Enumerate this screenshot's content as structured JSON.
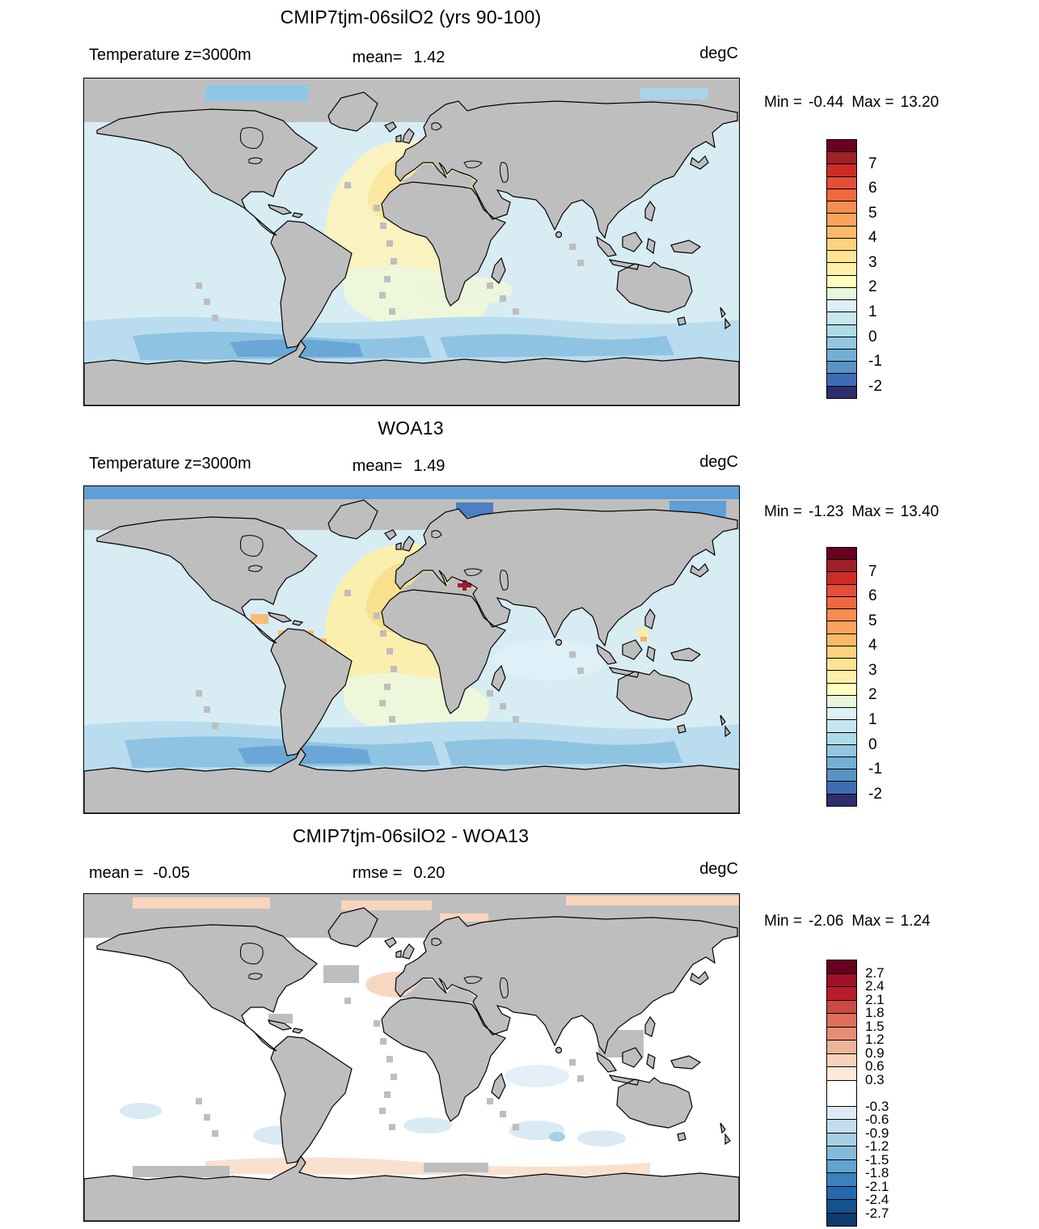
{
  "figure": {
    "variable": "Temperature",
    "depth_label": "z=3000m",
    "units": "degC",
    "land_mask_color": "#bebebe"
  },
  "panels": [
    {
      "title": "CMIP7tjm-06silO2 (yrs 90-100)",
      "left_label": "Temperature z=3000m",
      "left_value": "",
      "center_label": "mean=",
      "center_value": "1.42",
      "units": "degC",
      "min_label": "Min =",
      "min_value": "-0.44",
      "max_label": "Max =",
      "max_value": "13.20",
      "colorbar": {
        "top_value": 8.0,
        "bottom_value": -2.5,
        "colors": [
          "#690122",
          "#a02028",
          "#cf2b27",
          "#e44f39",
          "#f0683f",
          "#f68d51",
          "#fba35c",
          "#fdb96a",
          "#fdd27f",
          "#fee395",
          "#fef0a8",
          "#ffffbf",
          "#e9f6dd",
          "#ddf0f7",
          "#c7e7f0",
          "#aedbe8",
          "#93c6e0",
          "#74afd3",
          "#5b92c6",
          "#3f6db5",
          "#2d2e6e"
        ],
        "spans": [
          0.5,
          0.5,
          0.5,
          0.5,
          0.5,
          0.5,
          0.5,
          0.5,
          0.5,
          0.5,
          0.5,
          0.5,
          0.5,
          0.5,
          0.5,
          0.5,
          0.5,
          0.5,
          0.5,
          0.5,
          0.5
        ],
        "ticks": [
          {
            "value": 7,
            "label": "7"
          },
          {
            "value": 6,
            "label": "6"
          },
          {
            "value": 5,
            "label": "5"
          },
          {
            "value": 4,
            "label": "4"
          },
          {
            "value": 3,
            "label": "3"
          },
          {
            "value": 2,
            "label": "2"
          },
          {
            "value": 1,
            "label": "1"
          },
          {
            "value": 0,
            "label": "0"
          },
          {
            "value": -1,
            "label": "-1"
          },
          {
            "value": -2,
            "label": "-2"
          }
        ]
      }
    },
    {
      "title": "WOA13",
      "left_label": "Temperature z=3000m",
      "left_value": "",
      "center_label": "mean=",
      "center_value": "1.49",
      "units": "degC",
      "min_label": "Min =",
      "min_value": "-1.23",
      "max_label": "Max =",
      "max_value": "13.40",
      "colorbar": {
        "top_value": 8.0,
        "bottom_value": -2.5,
        "colors": [
          "#690122",
          "#a02028",
          "#cf2b27",
          "#e44f39",
          "#f0683f",
          "#f68d51",
          "#fba35c",
          "#fdb96a",
          "#fdd27f",
          "#fee395",
          "#fef0a8",
          "#ffffbf",
          "#e9f6dd",
          "#ddf0f7",
          "#c7e7f0",
          "#aedbe8",
          "#93c6e0",
          "#74afd3",
          "#5b92c6",
          "#3f6db5",
          "#2d2e6e"
        ],
        "spans": [
          0.5,
          0.5,
          0.5,
          0.5,
          0.5,
          0.5,
          0.5,
          0.5,
          0.5,
          0.5,
          0.5,
          0.5,
          0.5,
          0.5,
          0.5,
          0.5,
          0.5,
          0.5,
          0.5,
          0.5,
          0.5
        ],
        "ticks": [
          {
            "value": 7,
            "label": "7"
          },
          {
            "value": 6,
            "label": "6"
          },
          {
            "value": 5,
            "label": "5"
          },
          {
            "value": 4,
            "label": "4"
          },
          {
            "value": 3,
            "label": "3"
          },
          {
            "value": 2,
            "label": "2"
          },
          {
            "value": 1,
            "label": "1"
          },
          {
            "value": 0,
            "label": "0"
          },
          {
            "value": -1,
            "label": "-1"
          },
          {
            "value": -2,
            "label": "-2"
          }
        ]
      }
    },
    {
      "title": "CMIP7tjm-06silO2 - WOA13",
      "left_label": "mean =",
      "left_value": "-0.05",
      "center_label": "rmse =",
      "center_value": "0.20",
      "units": "degC",
      "min_label": "Min =",
      "min_value": "-2.06",
      "max_label": "Max =",
      "max_value": "1.24",
      "colorbar": {
        "top_value": 3.0,
        "bottom_value": -3.0,
        "colors": [
          "#67001f",
          "#9c1127",
          "#bc1b2c",
          "#cc4a42",
          "#dc7059",
          "#e78e71",
          "#eeb49a",
          "#f8d3bb",
          "#fce9dc",
          "#ffffff",
          "#ddeaf3",
          "#c4ddeb",
          "#a7cfe3",
          "#86badb",
          "#62a3cf",
          "#3a82bc",
          "#2468ae",
          "#15508f",
          "#0c3b70"
        ],
        "spans": [
          0.3,
          0.3,
          0.3,
          0.3,
          0.3,
          0.3,
          0.3,
          0.3,
          0.3,
          0.6,
          0.3,
          0.3,
          0.3,
          0.3,
          0.3,
          0.3,
          0.3,
          0.3,
          0.3
        ],
        "ticks": [
          {
            "value": 2.7,
            "label": "2.7"
          },
          {
            "value": 2.4,
            "label": "2.4"
          },
          {
            "value": 2.1,
            "label": "2.1"
          },
          {
            "value": 1.8,
            "label": "1.8"
          },
          {
            "value": 1.5,
            "label": "1.5"
          },
          {
            "value": 1.2,
            "label": "1.2"
          },
          {
            "value": 0.9,
            "label": "0.9"
          },
          {
            "value": 0.6,
            "label": "0.6"
          },
          {
            "value": 0.3,
            "label": "0.3"
          },
          {
            "value": -0.3,
            "label": "-0.3"
          },
          {
            "value": -0.6,
            "label": "-0.6"
          },
          {
            "value": -0.9,
            "label": "-0.9"
          },
          {
            "value": -1.2,
            "label": "-1.2"
          },
          {
            "value": -1.5,
            "label": "-1.5"
          },
          {
            "value": -1.8,
            "label": "-1.8"
          },
          {
            "value": -2.1,
            "label": "-2.1"
          },
          {
            "value": -2.4,
            "label": "-2.4"
          },
          {
            "value": -2.7,
            "label": "-2.7"
          }
        ]
      }
    }
  ],
  "chart_data": [
    {
      "type": "heatmap",
      "title": "CMIP7tjm-06silO2 (yrs 90-100)",
      "variable": "Temperature",
      "depth": "z=3000m",
      "units": "degC",
      "projection": "global latitude-longitude map",
      "mean": 1.42,
      "min": -0.44,
      "max": 13.2,
      "colorbar_range": [
        -2.5,
        8.0
      ],
      "colorbar_step": 0.5,
      "colorbar_ticks": [
        7,
        6,
        5,
        4,
        3,
        2,
        1,
        0,
        -1,
        -2
      ],
      "palette": [
        "#690122",
        "#a02028",
        "#cf2b27",
        "#e44f39",
        "#f0683f",
        "#f68d51",
        "#fba35c",
        "#fdb96a",
        "#fdd27f",
        "#fee395",
        "#fef0a8",
        "#ffffbf",
        "#e9f6dd",
        "#ddf0f7",
        "#c7e7f0",
        "#aedbe8",
        "#93c6e0",
        "#74afd3",
        "#5b92c6",
        "#3f6db5",
        "#2d2e6e"
      ],
      "features": "pale-yellow warm pool (2-3 degC) in North Atlantic, light blue (~1 degC) Pacific and Indian oceans, darker blue band (0-1 degC) around Antarctica, gray land/no-data mask incl. Arctic"
    },
    {
      "type": "heatmap",
      "title": "WOA13",
      "variable": "Temperature",
      "depth": "z=3000m",
      "units": "degC",
      "projection": "global latitude-longitude map",
      "mean": 1.49,
      "min": -1.23,
      "max": 13.4,
      "colorbar_range": [
        -2.5,
        8.0
      ],
      "colorbar_step": 0.5,
      "colorbar_ticks": [
        7,
        6,
        5,
        4,
        3,
        2,
        1,
        0,
        -1,
        -2
      ],
      "palette": [
        "#690122",
        "#a02028",
        "#cf2b27",
        "#e44f39",
        "#f0683f",
        "#f68d51",
        "#fba35c",
        "#fdb96a",
        "#fdd27f",
        "#fee395",
        "#fef0a8",
        "#ffffbf",
        "#e9f6dd",
        "#ddf0f7",
        "#c7e7f0",
        "#aedbe8",
        "#93c6e0",
        "#74afd3",
        "#5b92c6",
        "#3f6db5",
        "#2d2e6e"
      ],
      "features": "dark blue Arctic band, orange spots (4-5 degC) in Gulf of Mexico/Caribbean, crimson maximum spot in Mediterranean, yellow North Atlantic warm pool, blue Southern Ocean band"
    },
    {
      "type": "heatmap",
      "title": "CMIP7tjm-06silO2 - WOA13",
      "variable": "Temperature difference",
      "depth": "z=3000m",
      "units": "degC",
      "projection": "global latitude-longitude map",
      "mean": -0.05,
      "rmse": 0.2,
      "min": -2.06,
      "max": 1.24,
      "colorbar_range": [
        -3.0,
        3.0
      ],
      "colorbar_step": 0.3,
      "colorbar_ticks": [
        2.7,
        2.4,
        2.1,
        1.8,
        1.5,
        1.2,
        0.9,
        0.6,
        0.3,
        -0.3,
        -0.6,
        -0.9,
        -1.2,
        -1.5,
        -1.8,
        -2.1,
        -2.4,
        -2.7
      ],
      "palette": [
        "#67001f",
        "#9c1127",
        "#bc1b2c",
        "#cc4a42",
        "#dc7059",
        "#e78e71",
        "#eeb49a",
        "#f8d3bb",
        "#fce9dc",
        "#ffffff",
        "#ddeaf3",
        "#c4ddeb",
        "#a7cfe3",
        "#86badb",
        "#62a3cf",
        "#3a82bc",
        "#2468ae",
        "#15508f",
        "#0c3b70"
      ],
      "features": "mostly white (near-zero difference), pale orange patches in Arctic band and near Antarctica, faint light-blue patches in Southern/Indian oceans, small deep-blue spot near Philippines"
    }
  ]
}
